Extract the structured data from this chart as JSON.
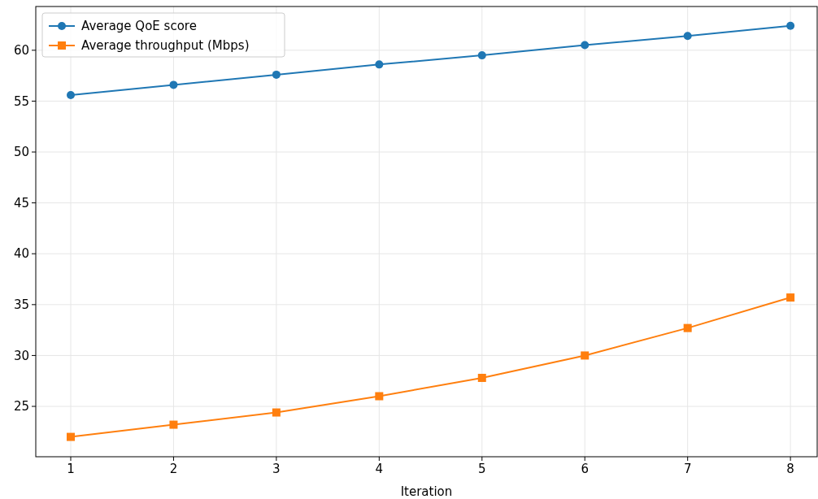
{
  "chart_data": {
    "type": "line",
    "xlabel": "Iteration",
    "x": [
      1,
      2,
      3,
      4,
      5,
      6,
      7,
      8
    ],
    "series": [
      {
        "name": "Average QoE score",
        "color": "#1f77b4",
        "marker": "circle",
        "values": [
          55.6,
          56.6,
          57.6,
          58.6,
          59.5,
          60.5,
          61.4,
          62.4
        ]
      },
      {
        "name": "Average throughput (Mbps)",
        "color": "#ff7f0e",
        "marker": "square",
        "values": [
          22.0,
          23.2,
          24.4,
          26.0,
          27.8,
          30.0,
          32.7,
          35.7
        ]
      }
    ],
    "xlim": [
      0.66,
      8.26
    ],
    "xticks": [
      1,
      2,
      3,
      4,
      5,
      6,
      7,
      8
    ],
    "ylim": [
      20.05,
      64.3
    ],
    "yticks": [
      25,
      30,
      35,
      40,
      45,
      50,
      55,
      60
    ],
    "grid": true,
    "legend": "top left",
    "line_style": "solid"
  }
}
